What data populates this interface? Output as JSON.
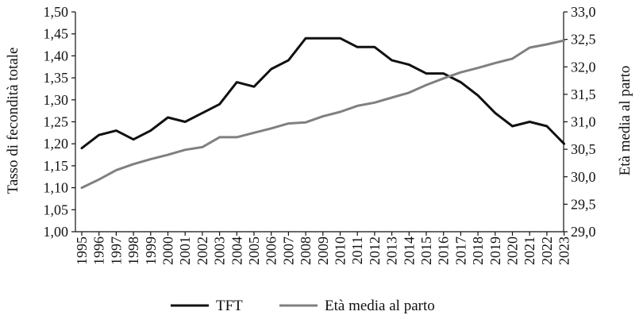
{
  "chart_data": {
    "type": "line",
    "x": [
      1995,
      1996,
      1997,
      1998,
      1999,
      2000,
      2001,
      2002,
      2003,
      2004,
      2005,
      2006,
      2007,
      2008,
      2009,
      2010,
      2011,
      2012,
      2013,
      2014,
      2015,
      2016,
      2017,
      2018,
      2019,
      2020,
      2021,
      2022,
      2023
    ],
    "x_tick_labels": [
      "1995",
      "1996",
      "1997",
      "1998",
      "1999",
      "2000",
      "2001",
      "2002",
      "2003",
      "2004",
      "2005",
      "2006",
      "2007",
      "2008",
      "2009",
      "2010",
      "2011",
      "2012",
      "2013",
      "2014",
      "2015",
      "2016",
      "2017",
      "2018",
      "2019",
      "2020",
      "2021",
      "2022",
      "2023"
    ],
    "series": [
      {
        "name": "TFT",
        "axis": "left",
        "color": "#111111",
        "values": [
          1.19,
          1.22,
          1.23,
          1.21,
          1.23,
          1.26,
          1.25,
          1.27,
          1.29,
          1.34,
          1.33,
          1.37,
          1.39,
          1.44,
          1.44,
          1.44,
          1.42,
          1.42,
          1.39,
          1.38,
          1.36,
          1.36,
          1.34,
          1.31,
          1.27,
          1.24,
          1.25,
          1.24,
          1.2
        ]
      },
      {
        "name": "Età media al parto",
        "axis": "right",
        "color": "#808080",
        "values": [
          29.8,
          29.95,
          30.12,
          30.23,
          30.32,
          30.4,
          30.49,
          30.54,
          30.72,
          30.72,
          30.8,
          30.88,
          30.97,
          30.99,
          31.1,
          31.18,
          31.29,
          31.35,
          31.44,
          31.53,
          31.67,
          31.79,
          31.9,
          31.98,
          32.07,
          32.15,
          32.35,
          32.41,
          32.48
        ]
      }
    ],
    "y_left": {
      "label": "Tasso di fecondità totale",
      "ylim": [
        1.0,
        1.5
      ],
      "ticks": [
        1.0,
        1.05,
        1.1,
        1.15,
        1.2,
        1.25,
        1.3,
        1.35,
        1.4,
        1.45,
        1.5
      ],
      "tick_labels": [
        "1,00",
        "1,05",
        "1,10",
        "1,15",
        "1,20",
        "1,25",
        "1,30",
        "1,35",
        "1,40",
        "1,45",
        "1,50"
      ]
    },
    "y_right": {
      "label": "Età media al parto",
      "ylim": [
        29.0,
        33.0
      ],
      "ticks": [
        29.0,
        29.5,
        30.0,
        30.5,
        31.0,
        31.5,
        32.0,
        32.5,
        33.0
      ],
      "tick_labels": [
        "29,0",
        "29,5",
        "30,0",
        "30,5",
        "31,0",
        "31,5",
        "32,0",
        "32,5",
        "33,0"
      ]
    },
    "grid": false,
    "legend_position": "bottom"
  }
}
